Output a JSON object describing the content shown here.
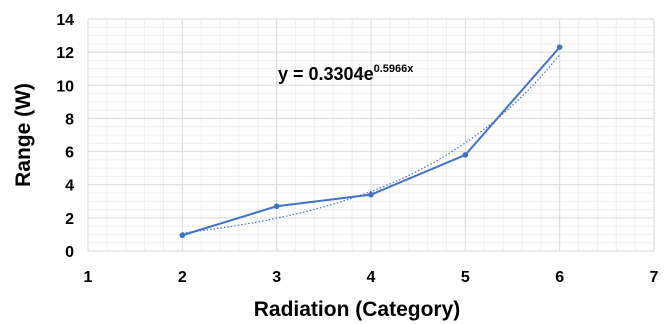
{
  "chart_data": {
    "type": "scatter",
    "title": "",
    "xlabel": "Radiation (Category)",
    "ylabel": "Range (W)",
    "xlim": [
      1,
      7
    ],
    "ylim": [
      0,
      14
    ],
    "x_ticks": [
      "1",
      "2",
      "3",
      "4",
      "5",
      "6",
      "7"
    ],
    "y_ticks": [
      "0",
      "2",
      "4",
      "6",
      "8",
      "10",
      "12",
      "14"
    ],
    "grid": true,
    "legend": "none",
    "series": [
      {
        "style": "line-with-markers",
        "color": "#4472c4",
        "x": [
          2,
          3,
          4,
          5,
          6
        ],
        "y": [
          0.95,
          2.7,
          3.4,
          5.8,
          12.3
        ]
      }
    ],
    "trendline": {
      "kind": "exponential",
      "a": 0.3304,
      "b": 0.5966,
      "x_range": [
        2,
        6
      ],
      "color": "#4472c4",
      "style": "dotted",
      "equation_main": "y = 0.3304e",
      "equation_exponent": "0.5966x"
    }
  }
}
